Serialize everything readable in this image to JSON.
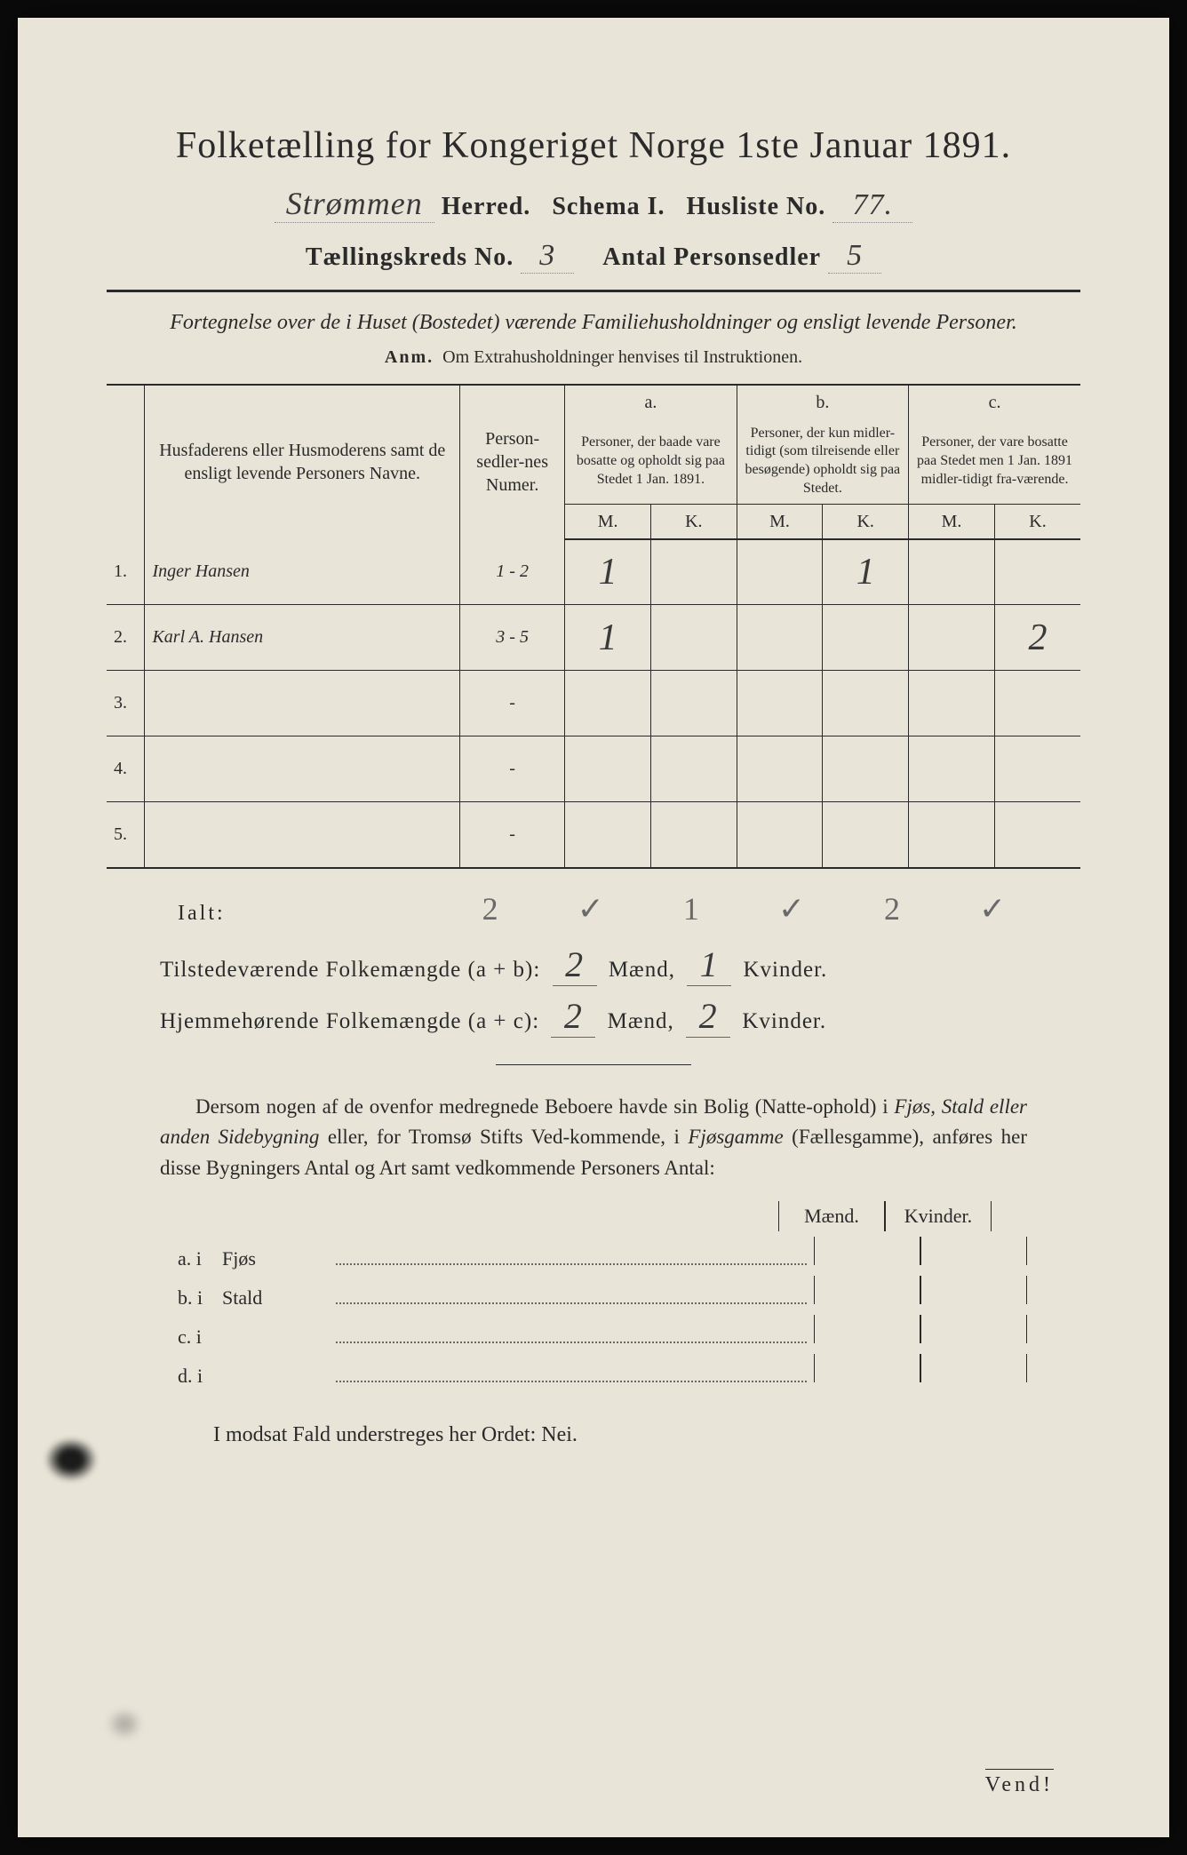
{
  "colors": {
    "paper": "#e8e4d8",
    "ink": "#2a2a2a",
    "handwriting": "#3a3a3a",
    "pencil": "#6a6a6a",
    "background": "#0a0a0a"
  },
  "title": "Folketælling for Kongeriget Norge 1ste Januar 1891.",
  "header": {
    "herred_hw": "Strømmen",
    "herred_label": "Herred.",
    "schema_label": "Schema I.",
    "husliste_label": "Husliste No.",
    "husliste_hw": "77.",
    "kreds_label": "Tællingskreds No.",
    "kreds_hw": "3",
    "antal_label": "Antal Personsedler",
    "antal_hw": "5"
  },
  "subtitle": "Fortegnelse over de i Huset (Bostedet) værende Familiehusholdninger og ensligt levende Personer.",
  "anm_label": "Anm.",
  "anm_text": "Om Extrahusholdninger henvises til Instruktionen.",
  "table": {
    "col1": "Husfaderens eller Husmoderens samt de ensligt levende Personers Navne.",
    "col2": "Person-sedler-nes Numer.",
    "a_label": "a.",
    "a_text": "Personer, der baade vare bosatte og opholdt sig paa Stedet 1 Jan. 1891.",
    "b_label": "b.",
    "b_text": "Personer, der kun midler-tidigt (som tilreisende eller besøgende) opholdt sig paa Stedet.",
    "c_label": "c.",
    "c_text": "Personer, der vare bosatte paa Stedet men 1 Jan. 1891 midler-tidigt fra-værende.",
    "m": "M.",
    "k": "K.",
    "rows": [
      {
        "num": "1.",
        "name": "Inger Hansen",
        "sedler": "1 - 2",
        "a_m": "1",
        "a_k": "",
        "b_m": "",
        "b_k": "1",
        "c_m": "",
        "c_k": ""
      },
      {
        "num": "2.",
        "name": "Karl A. Hansen",
        "sedler": "3 - 5",
        "a_m": "1",
        "a_k": "",
        "b_m": "",
        "b_k": "",
        "c_m": "",
        "c_k": "2"
      },
      {
        "num": "3.",
        "name": "",
        "sedler": "-",
        "a_m": "",
        "a_k": "",
        "b_m": "",
        "b_k": "",
        "c_m": "",
        "c_k": ""
      },
      {
        "num": "4.",
        "name": "",
        "sedler": "-",
        "a_m": "",
        "a_k": "",
        "b_m": "",
        "b_k": "",
        "c_m": "",
        "c_k": ""
      },
      {
        "num": "5.",
        "name": "",
        "sedler": "-",
        "a_m": "",
        "a_k": "",
        "b_m": "",
        "b_k": "",
        "c_m": "",
        "c_k": ""
      }
    ]
  },
  "ialt": {
    "label": "Ialt:",
    "hw": "2 ✓        1 ✓   2 ✓"
  },
  "summary": {
    "line1_label": "Tilstedeværende Folkemængde (a + b):",
    "line1_m": "2",
    "line1_k": "1",
    "line2_label": "Hjemmehørende Folkemængde (a + c):",
    "line2_m": "2",
    "line2_k": "2",
    "maend": "Mænd,",
    "kvinder": "Kvinder."
  },
  "paragraph": "Dersom nogen af de ovenfor medregnede Beboere havde sin Bolig (Natte-ophold) i Fjøs, Stald eller anden Sidebygning eller, for Tromsø Stifts Ved-kommende, i Fjøsgamme (Fællesgamme), anføres her disse Bygningers Antal og Art samt vedkommende Personers Antal:",
  "mk_headers": {
    "m": "Mænd.",
    "k": "Kvinder."
  },
  "list": [
    {
      "a": "a.",
      "i": "i",
      "label": "Fjøs"
    },
    {
      "a": "b.",
      "i": "i",
      "label": "Stald"
    },
    {
      "a": "c.",
      "i": "i",
      "label": ""
    },
    {
      "a": "d.",
      "i": "i",
      "label": ""
    }
  ],
  "nei_line": "I modsat Fald understreges her Ordet: Nei.",
  "vend": "Vend!"
}
